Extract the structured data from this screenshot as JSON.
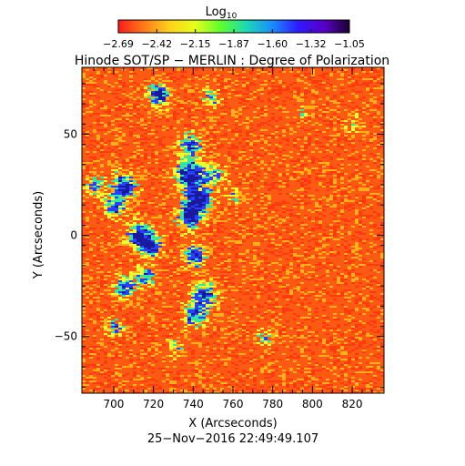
{
  "colorbar": {
    "label_main": "Log",
    "label_sub": "10",
    "ticks": [
      "−2.69",
      "−2.42",
      "−2.15",
      "−1.87",
      "−1.60",
      "−1.32",
      "−1.05"
    ],
    "range": [
      -2.69,
      -1.05
    ],
    "colors": [
      "#ff1a1a",
      "#ff7a1a",
      "#ffd21a",
      "#e5ff1a",
      "#5cff2e",
      "#1ad9b4",
      "#1a8cff",
      "#2e1aff",
      "#5a00c8",
      "#1a0030"
    ]
  },
  "title": "Hinode SOT/SP − MERLIN : Degree of Polarization",
  "xlabel": "X (Arcseconds)",
  "ylabel": "Y (Arcseconds)",
  "x_ticks": [
    "700",
    "720",
    "740",
    "760",
    "780",
    "800",
    "820"
  ],
  "y_ticks": [
    "50",
    "0",
    "−50"
  ],
  "timestamp": "25−Nov−2016 22:49:49.107",
  "chart_data": {
    "type": "heatmap",
    "xlim": [
      684,
      836
    ],
    "ylim": [
      -78,
      83
    ],
    "background_level": "red-orange (low polarization)",
    "map_colors": {
      "base": "#ff5a14",
      "base_alt": "#ff3a10",
      "low": "#ffb019",
      "mid": "#e9ff33",
      "high": "#33e6a6",
      "peak": "#2a40ff",
      "max": "#1a1aa0"
    }
  }
}
